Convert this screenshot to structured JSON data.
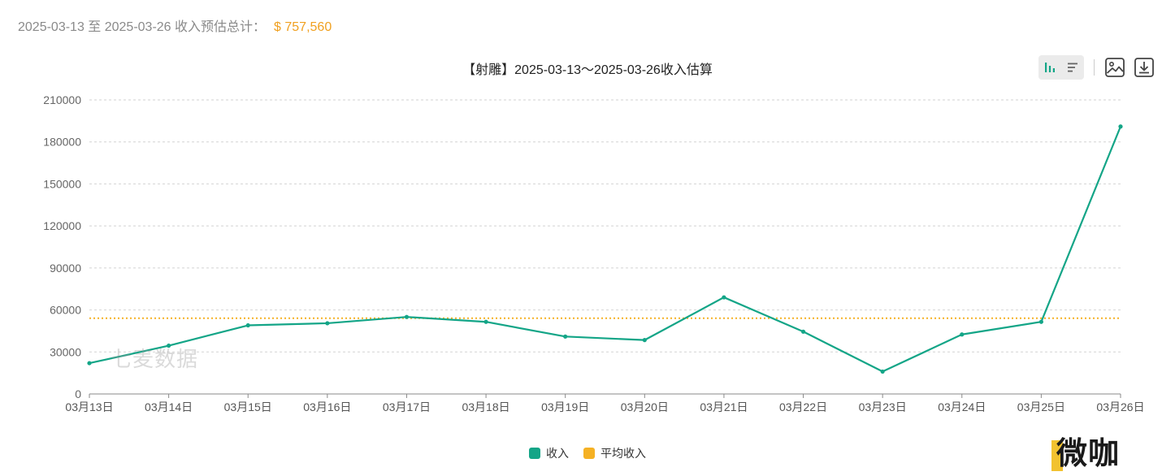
{
  "summary": {
    "range_label": "2025-03-13 至 2025-03-26 收入预估总计：",
    "total": "$ 757,560"
  },
  "toolbar": {
    "bar_icon": "bar-chart-icon",
    "list_icon": "list-icon",
    "image_icon": "save-image-icon",
    "download_icon": "download-icon"
  },
  "watermark": "七麦数据",
  "logo": "微咖",
  "colors": {
    "income": "#13a587",
    "average": "#f5b124",
    "grid": "#d2d2d2",
    "axis": "#8a8a8a"
  },
  "chart_data": {
    "type": "line",
    "title": "【射雕】2025-03-13～2025-03-26收入估算",
    "xlabel": "",
    "ylabel": "",
    "categories": [
      "03月13日",
      "03月14日",
      "03月15日",
      "03月16日",
      "03月17日",
      "03月18日",
      "03月19日",
      "03月20日",
      "03月21日",
      "03月22日",
      "03月23日",
      "03月24日",
      "03月25日",
      "03月26日"
    ],
    "series": [
      {
        "name": "收入",
        "values": [
          22000,
          34500,
          49000,
          50500,
          55000,
          51500,
          41000,
          38500,
          69000,
          44500,
          16000,
          42500,
          51500,
          191000
        ]
      },
      {
        "name": "平均收入",
        "values": [
          54111,
          54111,
          54111,
          54111,
          54111,
          54111,
          54111,
          54111,
          54111,
          54111,
          54111,
          54111,
          54111,
          54111
        ]
      }
    ],
    "ylim": [
      0,
      210000
    ],
    "yticks": [
      "0",
      "30000",
      "60000",
      "90000",
      "120000",
      "150000",
      "180000",
      "210000"
    ],
    "grid": true,
    "legend_position": "bottom-center"
  }
}
